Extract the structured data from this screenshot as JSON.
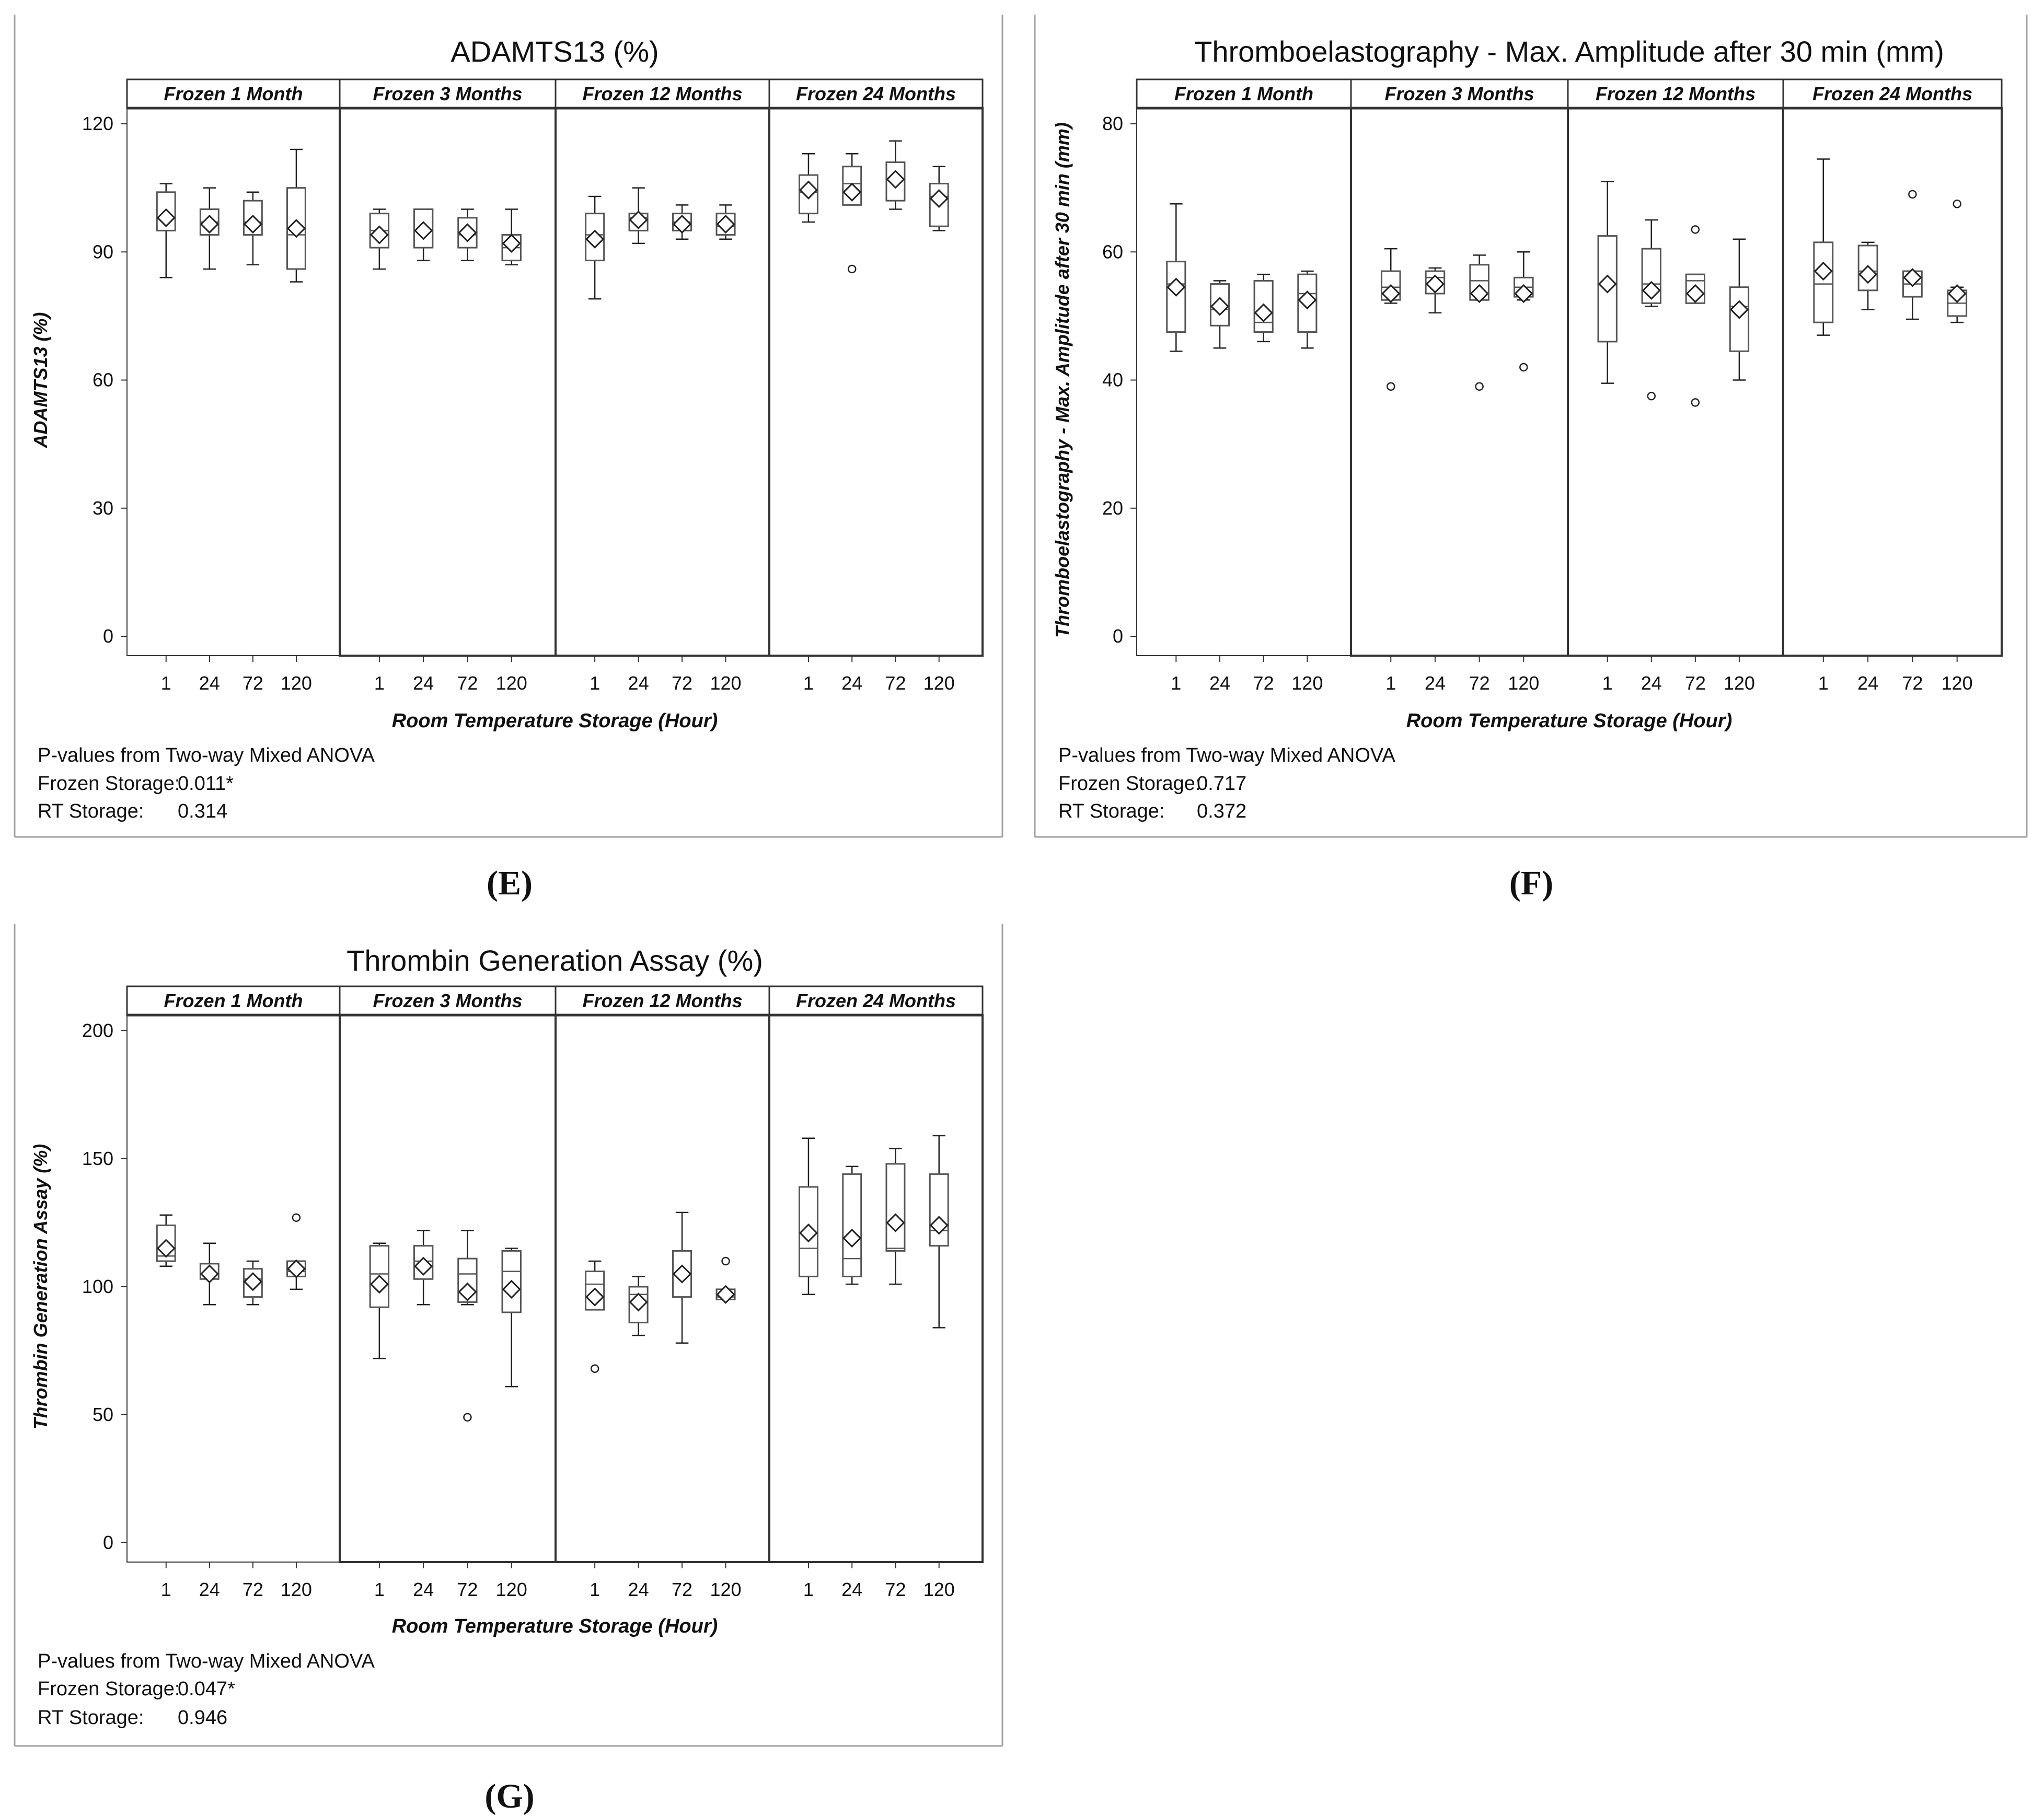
{
  "colors": {
    "frame": "#a0a0a0",
    "line": "#222222",
    "box": "#555555",
    "strip_bg": "#ffffff"
  },
  "chart_data": [
    {
      "panel_label": "(E)",
      "type": "boxplot",
      "title": "ADAMTS13 (%)",
      "ylabel": "ADAMTS13 (%)",
      "xlabel": "Room Temperature Storage (Hour)",
      "ylim": [
        0,
        120
      ],
      "yticks": [
        "0",
        "30",
        "60",
        "90",
        "120"
      ],
      "categories": [
        "1",
        "24",
        "72",
        "120"
      ],
      "facets": [
        {
          "label": "Frozen 1 Month",
          "boxes": [
            {
              "x": "1",
              "min": 84,
              "q1": 95,
              "median": 98,
              "q3": 104,
              "max": 106,
              "mean": 98,
              "outliers": []
            },
            {
              "x": "24",
              "min": 86,
              "q1": 94,
              "median": 97,
              "q3": 100,
              "max": 105,
              "mean": 96.5,
              "outliers": []
            },
            {
              "x": "72",
              "min": 87,
              "q1": 94,
              "median": 97,
              "q3": 102,
              "max": 104,
              "mean": 96.5,
              "outliers": []
            },
            {
              "x": "120",
              "min": 83,
              "q1": 86,
              "median": 94,
              "q3": 105,
              "max": 114,
              "mean": 95.5,
              "outliers": []
            }
          ]
        },
        {
          "label": "Frozen  3 Months",
          "boxes": [
            {
              "x": "1",
              "min": 86,
              "q1": 91,
              "median": 95,
              "q3": 99,
              "max": 100,
              "mean": 94,
              "outliers": []
            },
            {
              "x": "24",
              "min": 88,
              "q1": 91,
              "median": 95,
              "q3": 100,
              "max": 100,
              "mean": 95,
              "outliers": []
            },
            {
              "x": "72",
              "min": 88,
              "q1": 91,
              "median": 94,
              "q3": 98,
              "max": 100,
              "mean": 94.5,
              "outliers": []
            },
            {
              "x": "120",
              "min": 87,
              "q1": 88,
              "median": 91,
              "q3": 94,
              "max": 100,
              "mean": 92,
              "outliers": []
            }
          ]
        },
        {
          "label": "Frozen 12 Months",
          "boxes": [
            {
              "x": "1",
              "min": 79,
              "q1": 88,
              "median": 94,
              "q3": 99,
              "max": 103,
              "mean": 93,
              "outliers": []
            },
            {
              "x": "24",
              "min": 92,
              "q1": 95,
              "median": 98,
              "q3": 99,
              "max": 105,
              "mean": 97.5,
              "outliers": []
            },
            {
              "x": "72",
              "min": 93,
              "q1": 95,
              "median": 97,
              "q3": 99,
              "max": 101,
              "mean": 96.5,
              "outliers": []
            },
            {
              "x": "120",
              "min": 93,
              "q1": 94,
              "median": 96,
              "q3": 99,
              "max": 101,
              "mean": 96.5,
              "outliers": []
            }
          ]
        },
        {
          "label": "Frozen 24 Months",
          "boxes": [
            {
              "x": "1",
              "min": 97,
              "q1": 99,
              "median": 104,
              "q3": 108,
              "max": 113,
              "mean": 104.5,
              "outliers": []
            },
            {
              "x": "24",
              "min": 101,
              "q1": 101,
              "median": 106,
              "q3": 110,
              "max": 113,
              "mean": 104,
              "outliers": [
                86
              ]
            },
            {
              "x": "72",
              "min": 100,
              "q1": 102,
              "median": 107,
              "q3": 111,
              "max": 116,
              "mean": 107,
              "outliers": []
            },
            {
              "x": "120",
              "min": 95,
              "q1": 96,
              "median": 103,
              "q3": 106,
              "max": 110,
              "mean": 102.5,
              "outliers": []
            }
          ]
        }
      ],
      "footnote": {
        "line1": "P-values from Two-way Mixed ANOVA",
        "line2_label": "Frozen Storage:",
        "line2_value": "0.011*",
        "line3_label": "RT Storage:",
        "line3_value": "0.314"
      }
    },
    {
      "panel_label": "(F)",
      "type": "boxplot",
      "title": "Thromboelastography - Max. Amplitude after 30 min (mm)",
      "ylabel": "Thromboelastography - Max. Amplitude after 30 min (mm)",
      "xlabel": "Room Temperature Storage (Hour)",
      "ylim": [
        0,
        80
      ],
      "yticks": [
        "0",
        "20",
        "40",
        "60",
        "80"
      ],
      "categories": [
        "1",
        "24",
        "72",
        "120"
      ],
      "facets": [
        {
          "label": "Frozen  1 Month",
          "boxes": [
            {
              "x": "1",
              "min": 44.5,
              "q1": 47.5,
              "median": 55,
              "q3": 58.5,
              "max": 67.5,
              "mean": 54.5,
              "outliers": []
            },
            {
              "x": "24",
              "min": 45,
              "q1": 48.5,
              "median": 51,
              "q3": 55,
              "max": 55.5,
              "mean": 51.5,
              "outliers": []
            },
            {
              "x": "72",
              "min": 46,
              "q1": 47.5,
              "median": 49,
              "q3": 55.5,
              "max": 56.5,
              "mean": 50.5,
              "outliers": []
            },
            {
              "x": "120",
              "min": 45,
              "q1": 47.5,
              "median": 53.5,
              "q3": 56.5,
              "max": 57,
              "mean": 52.5,
              "outliers": []
            }
          ]
        },
        {
          "label": "Frozen  3 Months",
          "boxes": [
            {
              "x": "1",
              "min": 52,
              "q1": 52.5,
              "median": 54.5,
              "q3": 57,
              "max": 60.5,
              "mean": 53.5,
              "outliers": [
                39
              ]
            },
            {
              "x": "24",
              "min": 50.5,
              "q1": 53.5,
              "median": 56,
              "q3": 57,
              "max": 57.5,
              "mean": 55,
              "outliers": []
            },
            {
              "x": "72",
              "min": 52.5,
              "q1": 52.5,
              "median": 55.5,
              "q3": 58,
              "max": 59.5,
              "mean": 53.5,
              "outliers": [
                39
              ]
            },
            {
              "x": "120",
              "min": 52.5,
              "q1": 53,
              "median": 54.5,
              "q3": 56,
              "max": 60,
              "mean": 53.5,
              "outliers": [
                42
              ]
            }
          ]
        },
        {
          "label": "Frozen 12 Months",
          "boxes": [
            {
              "x": "1",
              "min": 39.5,
              "q1": 46,
              "median": 55,
              "q3": 62.5,
              "max": 71,
              "mean": 55,
              "outliers": []
            },
            {
              "x": "24",
              "min": 51.5,
              "q1": 52,
              "median": 55,
              "q3": 60.5,
              "max": 65,
              "mean": 54,
              "outliers": [
                37.5
              ]
            },
            {
              "x": "72",
              "min": 52,
              "q1": 52,
              "median": 55.5,
              "q3": 56.5,
              "max": 56.5,
              "mean": 53.5,
              "outliers": [
                63.5,
                36.5
              ]
            },
            {
              "x": "120",
              "min": 40,
              "q1": 44.5,
              "median": 51.5,
              "q3": 54.5,
              "max": 62,
              "mean": 51,
              "outliers": []
            }
          ]
        },
        {
          "label": "Frozen 24 Months",
          "boxes": [
            {
              "x": "1",
              "min": 47,
              "q1": 49,
              "median": 55,
              "q3": 61.5,
              "max": 74.5,
              "mean": 57,
              "outliers": []
            },
            {
              "x": "24",
              "min": 51,
              "q1": 54,
              "median": 57,
              "q3": 61,
              "max": 61.5,
              "mean": 56.5,
              "outliers": []
            },
            {
              "x": "72",
              "min": 49.5,
              "q1": 53,
              "median": 55,
              "q3": 57,
              "max": 57,
              "mean": 56,
              "outliers": [
                69
              ]
            },
            {
              "x": "120",
              "min": 49,
              "q1": 50,
              "median": 52,
              "q3": 54,
              "max": 54.5,
              "mean": 53.5,
              "outliers": [
                67.5
              ]
            }
          ]
        }
      ],
      "footnote": {
        "line1": "P-values from Two-way Mixed ANOVA",
        "line2_label": "Frozen Storage:",
        "line2_value": "0.717",
        "line3_label": "RT Storage:",
        "line3_value": "0.372"
      }
    },
    {
      "panel_label": "(G)",
      "type": "boxplot",
      "title": "Thrombin Generation Assay (%)",
      "ylabel": "Thrombin Generation Assay (%)",
      "xlabel": "Room Temperature Storage (Hour)",
      "ylim": [
        0,
        200
      ],
      "yticks": [
        "0",
        "50",
        "100",
        "150",
        "200"
      ],
      "categories": [
        "1",
        "24",
        "72",
        "120"
      ],
      "facets": [
        {
          "label": "Frozen  1 Month",
          "boxes": [
            {
              "x": "1",
              "min": 108,
              "q1": 110,
              "median": 112,
              "q3": 124,
              "max": 128,
              "mean": 115,
              "outliers": []
            },
            {
              "x": "24",
              "min": 93,
              "q1": 103,
              "median": 105,
              "q3": 109,
              "max": 117,
              "mean": 105,
              "outliers": []
            },
            {
              "x": "72",
              "min": 93,
              "q1": 96,
              "median": 103,
              "q3": 107,
              "max": 110,
              "mean": 102,
              "outliers": []
            },
            {
              "x": "120",
              "min": 99,
              "q1": 104,
              "median": 106,
              "q3": 110,
              "max": 110,
              "mean": 107,
              "outliers": [
                127
              ]
            }
          ]
        },
        {
          "label": "Frozen  3 Months",
          "boxes": [
            {
              "x": "1",
              "min": 72,
              "q1": 92,
              "median": 105,
              "q3": 116,
              "max": 117,
              "mean": 101,
              "outliers": []
            },
            {
              "x": "24",
              "min": 93,
              "q1": 103,
              "median": 110,
              "q3": 116,
              "max": 122,
              "mean": 108,
              "outliers": []
            },
            {
              "x": "72",
              "min": 93,
              "q1": 94,
              "median": 105,
              "q3": 111,
              "max": 122,
              "mean": 98,
              "outliers": [
                49
              ]
            },
            {
              "x": "120",
              "min": 61,
              "q1": 90,
              "median": 106,
              "q3": 114,
              "max": 115,
              "mean": 99,
              "outliers": []
            }
          ]
        },
        {
          "label": "Frozen 12 Months",
          "boxes": [
            {
              "x": "1",
              "min": 91,
              "q1": 91,
              "median": 101,
              "q3": 106,
              "max": 110,
              "mean": 96,
              "outliers": [
                68
              ]
            },
            {
              "x": "24",
              "min": 81,
              "q1": 86,
              "median": 97,
              "q3": 100,
              "max": 104,
              "mean": 94,
              "outliers": []
            },
            {
              "x": "72",
              "min": 78,
              "q1": 96,
              "median": 105,
              "q3": 114,
              "max": 129,
              "mean": 105,
              "outliers": []
            },
            {
              "x": "120",
              "min": 95,
              "q1": 95,
              "median": 96,
              "q3": 99,
              "max": 99,
              "mean": 97,
              "outliers": [
                110
              ]
            }
          ]
        },
        {
          "label": "Frozen 24 Months",
          "boxes": [
            {
              "x": "1",
              "min": 97,
              "q1": 104,
              "median": 115,
              "q3": 139,
              "max": 158,
              "mean": 121,
              "outliers": []
            },
            {
              "x": "24",
              "min": 101,
              "q1": 104,
              "median": 111,
              "q3": 144,
              "max": 147,
              "mean": 119,
              "outliers": []
            },
            {
              "x": "72",
              "min": 101,
              "q1": 114,
              "median": 115,
              "q3": 148,
              "max": 154,
              "mean": 125,
              "outliers": []
            },
            {
              "x": "120",
              "min": 84,
              "q1": 116,
              "median": 122,
              "q3": 144,
              "max": 159,
              "mean": 124,
              "outliers": []
            }
          ]
        }
      ],
      "footnote": {
        "line1": "P-values from Two-way Mixed ANOVA",
        "line2_label": "Frozen Storage:",
        "line2_value": "0.047*",
        "line3_label": "RT Storage:",
        "line3_value": "0.946"
      }
    }
  ]
}
